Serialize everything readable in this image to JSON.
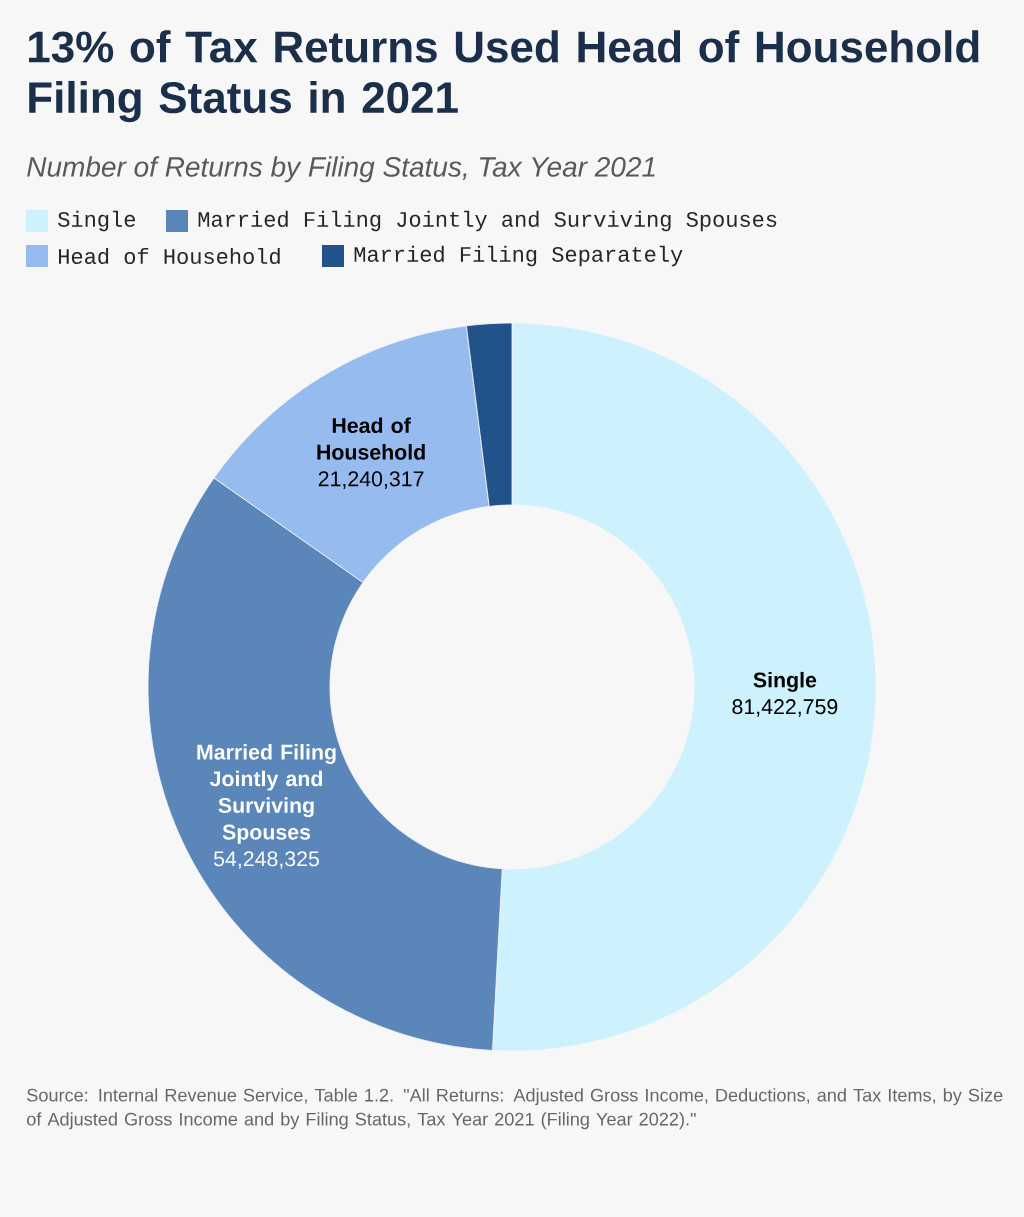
{
  "chart_data": {
    "type": "donut",
    "title": "13% of Tax Returns Used Head of Household Filing Status in 2021",
    "subtitle": "Number of Returns by Filing Status, Tax Year 2021",
    "categories": [
      "Single",
      "Married Filing Jointly and Surviving Spouses",
      "Head of Household",
      "Married Filing Separately"
    ],
    "values": [
      81422759,
      54248325,
      21240317,
      3200000
    ],
    "value_labels": [
      "81,422,759",
      "54,248,325",
      "21,240,317",
      null
    ],
    "colors": [
      "#cdf1fd",
      "#5b86ba",
      "#96bbef",
      "#21528a"
    ],
    "legend": "top",
    "annotations": [
      "Source: Internal Revenue Service, Table 1.2. \"All Returns: Adjusted Gross Income, Deductions, and Tax Items, by Size of Adjusted Gross Income and by Filing Status, Tax Year 2021 (Filing Year 2022).\""
    ]
  }
}
